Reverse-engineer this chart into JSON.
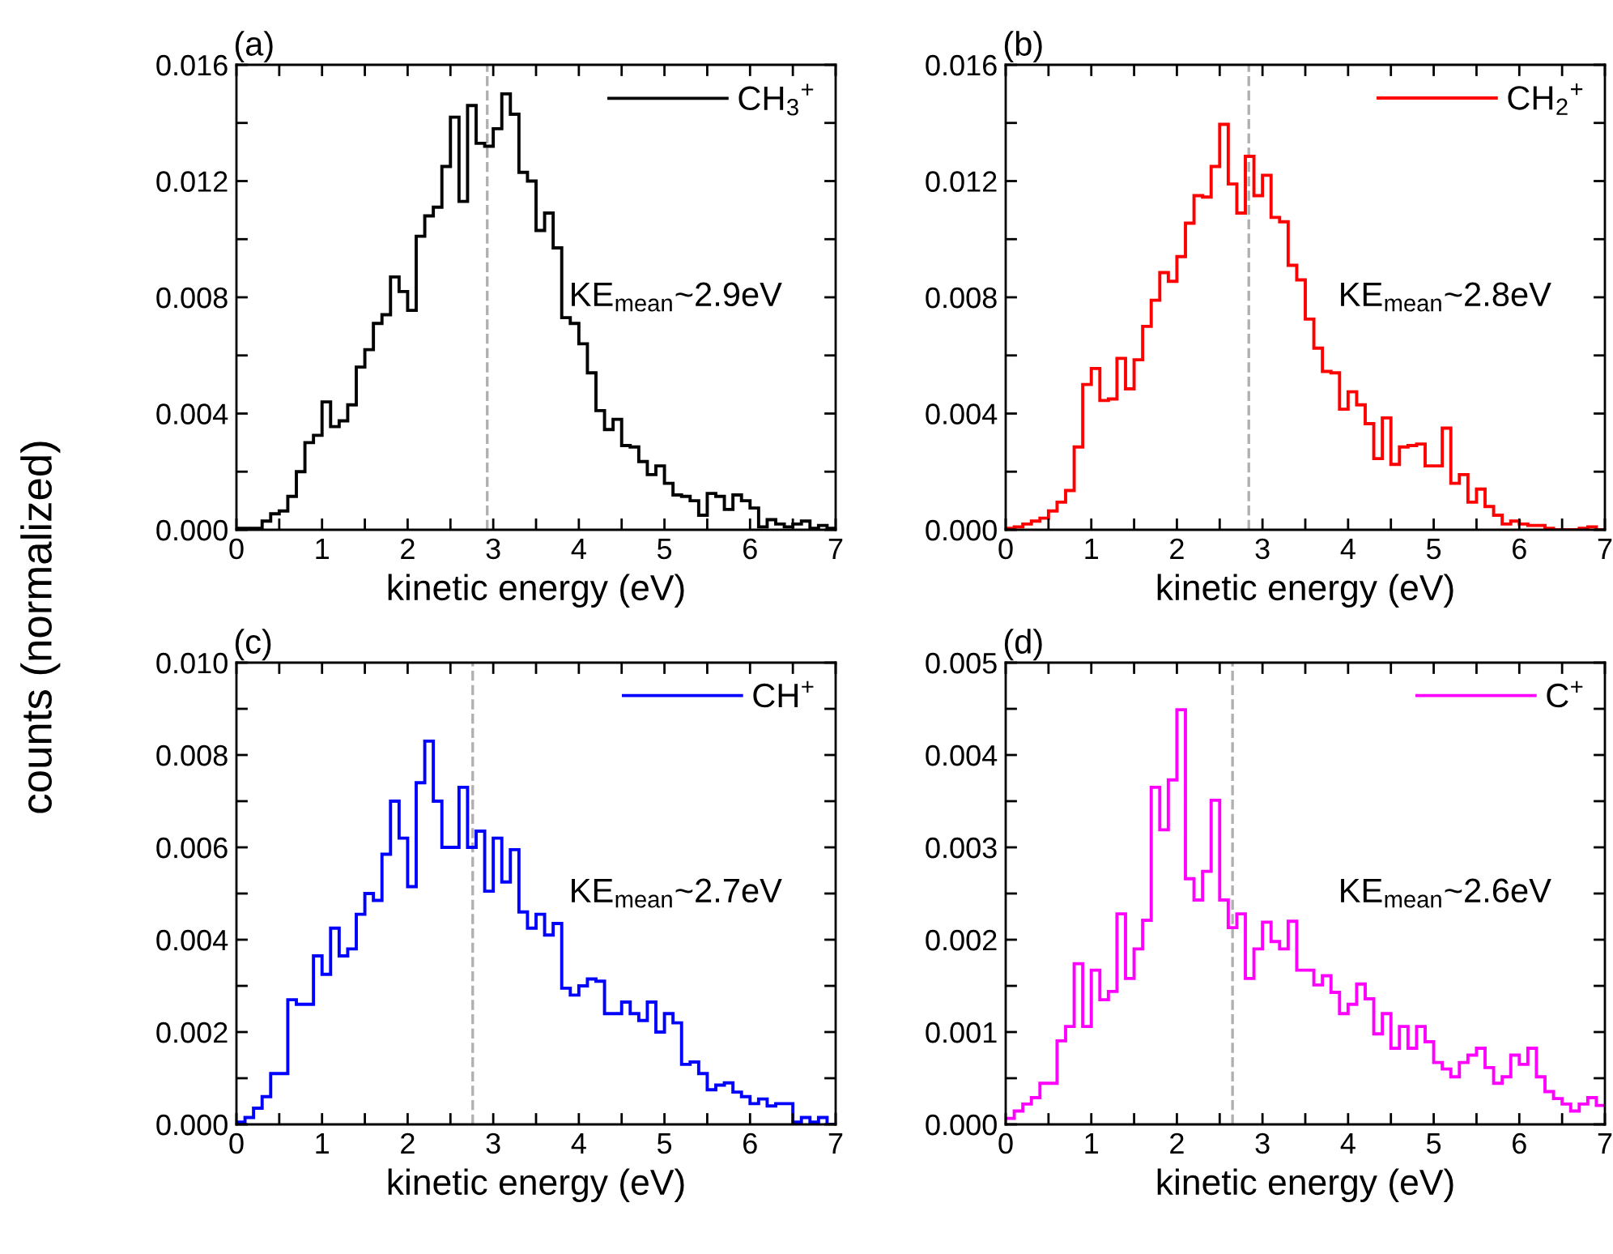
{
  "chart_data": [
    {
      "type": "histogram",
      "title": "(a)",
      "xlabel": "kinetic energy (eV)",
      "ylabel": "counts (normalized)",
      "bins": [
        0,
        0.1,
        0.2,
        0.3,
        0.4,
        0.5,
        0.6,
        0.7,
        0.8,
        0.9,
        1.0,
        1.1,
        1.2,
        1.3,
        1.4,
        1.5,
        1.6,
        1.7,
        1.8,
        1.9,
        2.0,
        2.1,
        2.2,
        2.3,
        2.4,
        2.5,
        2.6,
        2.7,
        2.8,
        2.9,
        3.0,
        3.1,
        3.2,
        3.3,
        3.4,
        3.5,
        3.6,
        3.7,
        3.8,
        3.9,
        4.0,
        4.1,
        4.2,
        4.3,
        4.4,
        4.5,
        4.6,
        4.7,
        4.8,
        4.9,
        5.0,
        5.1,
        5.2,
        5.3,
        5.4,
        5.5,
        5.6,
        5.7,
        5.8,
        5.9,
        6.0,
        6.1,
        6.2,
        6.3,
        6.4,
        6.5,
        6.6,
        6.7,
        6.8,
        6.9,
        7.0
      ],
      "series": [
        {
          "name": "CH$_{3}$$^{+}$",
          "color": "#000000",
          "values": [
            5e-05,
            5e-05,
            5e-05,
            0.0003,
            0.00055,
            0.00065,
            0.00115,
            0.002,
            0.003,
            0.00325,
            0.0044,
            0.00355,
            0.00375,
            0.0043,
            0.0056,
            0.0062,
            0.0071,
            0.0074,
            0.0087,
            0.0082,
            0.00755,
            0.0101,
            0.0108,
            0.0111,
            0.0125,
            0.0142,
            0.0113,
            0.0146,
            0.0133,
            0.0132,
            0.0138,
            0.015,
            0.0143,
            0.0123,
            0.012,
            0.0103,
            0.0109,
            0.0097,
            0.0073,
            0.0071,
            0.0064,
            0.0054,
            0.0041,
            0.00345,
            0.0038,
            0.0029,
            0.00285,
            0.00235,
            0.0019,
            0.0022,
            0.0016,
            0.0012,
            0.00115,
            0.001,
            0.0005,
            0.00125,
            0.00115,
            0.0007,
            0.0012,
            0.001,
            0.00075,
            0.0001,
            0.00035,
            0.0002,
            0.0001,
            0.0002,
            0.0003,
            5e-05,
            0.00015,
            5e-05
          ]
        }
      ],
      "xlim": [
        0,
        7
      ],
      "xticks": [
        0,
        {
          "value": 0.5,
          "label": null
        },
        1,
        {
          "value": 1.5,
          "label": null
        },
        2,
        {
          "value": 2.5,
          "label": null
        },
        3,
        {
          "value": 3.5,
          "label": null
        },
        4,
        {
          "value": 4.5,
          "label": null
        },
        5,
        {
          "value": 5.5,
          "label": null
        },
        6,
        {
          "value": 6.5,
          "label": null
        },
        7
      ],
      "ylim": [
        0,
        0.016
      ],
      "yticks": [
        "0.000",
        {
          "value": 0.002,
          "label": null
        },
        {
          "value": 0.004,
          "label": "0.004"
        },
        {
          "value": 0.006,
          "label": null
        },
        {
          "value": 0.008,
          "label": "0.008"
        },
        {
          "value": 0.01,
          "label": null
        },
        {
          "value": 0.012,
          "label": "0.012"
        },
        {
          "value": 0.014,
          "label": null
        },
        {
          "value": 0.016,
          "label": "0.016"
        }
      ],
      "ref_lines": [
        {
          "axis": "x",
          "value": 2.93,
          "color": "#b0b0b0",
          "line_style": "dashed"
        }
      ],
      "annotations": [
        "KE$_{mean}$~2.9eV"
      ],
      "legend": "top right",
      "grid": false
    },
    {
      "type": "histogram",
      "title": "(b)",
      "xlabel": "kinetic energy (eV)",
      "bins": [
        0,
        0.1,
        0.2,
        0.3,
        0.4,
        0.5,
        0.6,
        0.7,
        0.8,
        0.9,
        1.0,
        1.1,
        1.2,
        1.3,
        1.4,
        1.5,
        1.6,
        1.7,
        1.8,
        1.9,
        2.0,
        2.1,
        2.2,
        2.3,
        2.4,
        2.5,
        2.6,
        2.7,
        2.8,
        2.9,
        3.0,
        3.1,
        3.2,
        3.3,
        3.4,
        3.5,
        3.6,
        3.7,
        3.8,
        3.9,
        4.0,
        4.1,
        4.2,
        4.3,
        4.4,
        4.5,
        4.6,
        4.7,
        4.8,
        4.9,
        5.0,
        5.1,
        5.2,
        5.3,
        5.4,
        5.5,
        5.6,
        5.7,
        5.8,
        5.9,
        6.0,
        6.1,
        6.2,
        6.3,
        6.4,
        6.5,
        6.6,
        6.7,
        6.8,
        6.9,
        7.0
      ],
      "series": [
        {
          "name": "CH$_{2}$$^{+}$",
          "color": "#ff0000",
          "values": [
            5e-05,
            0.0001,
            0.0002,
            0.0003,
            0.0004,
            0.00065,
            0.00095,
            0.00135,
            0.00285,
            0.005,
            0.00555,
            0.00445,
            0.0045,
            0.0059,
            0.00485,
            0.00585,
            0.007,
            0.0079,
            0.00885,
            0.00855,
            0.0094,
            0.01055,
            0.0115,
            0.01145,
            0.0125,
            0.01395,
            0.0119,
            0.0109,
            0.01285,
            0.0115,
            0.0122,
            0.01075,
            0.0106,
            0.0091,
            0.0086,
            0.00725,
            0.00625,
            0.00545,
            0.0054,
            0.00415,
            0.00475,
            0.0043,
            0.00365,
            0.00245,
            0.00385,
            0.00225,
            0.00285,
            0.0029,
            0.00295,
            0.0022,
            0.0022,
            0.0035,
            0.0016,
            0.0019,
            0.00095,
            0.0014,
            0.0008,
            0.0005,
            0.0002,
            0.0003,
            0.0002,
            0.00015,
            0.00015,
            5e-05,
            0,
            0,
            0,
            5e-05,
            0.0001,
            0
          ]
        }
      ],
      "xlim": [
        0,
        7
      ],
      "xticks": [
        0,
        {
          "value": 0.5,
          "label": null
        },
        1,
        {
          "value": 1.5,
          "label": null
        },
        2,
        {
          "value": 2.5,
          "label": null
        },
        3,
        {
          "value": 3.5,
          "label": null
        },
        4,
        {
          "value": 4.5,
          "label": null
        },
        5,
        {
          "value": 5.5,
          "label": null
        },
        6,
        {
          "value": 6.5,
          "label": null
        },
        7
      ],
      "ylim": [
        0,
        0.016
      ],
      "yticks": [
        {
          "value": 0,
          "label": "0.000"
        },
        {
          "value": 0.002,
          "label": null
        },
        {
          "value": 0.004,
          "label": "0.004"
        },
        {
          "value": 0.006,
          "label": null
        },
        {
          "value": 0.008,
          "label": "0.008"
        },
        {
          "value": 0.01,
          "label": null
        },
        {
          "value": 0.012,
          "label": "0.012"
        },
        {
          "value": 0.014,
          "label": null
        },
        {
          "value": 0.016,
          "label": "0.016"
        }
      ],
      "ref_lines": [
        {
          "axis": "x",
          "value": 2.84,
          "color": "#b0b0b0",
          "line_style": "dashed"
        }
      ],
      "annotations": [
        "KE$_{mean}$~2.8eV"
      ],
      "legend": "top right",
      "grid": false
    },
    {
      "type": "histogram",
      "title": "(c)",
      "xlabel": "kinetic energy (eV)",
      "bins": [
        0,
        0.1,
        0.2,
        0.3,
        0.4,
        0.5,
        0.6,
        0.7,
        0.8,
        0.9,
        1.0,
        1.1,
        1.2,
        1.3,
        1.4,
        1.5,
        1.6,
        1.7,
        1.8,
        1.9,
        2.0,
        2.1,
        2.2,
        2.3,
        2.4,
        2.5,
        2.6,
        2.7,
        2.8,
        2.9,
        3.0,
        3.1,
        3.2,
        3.3,
        3.4,
        3.5,
        3.6,
        3.7,
        3.8,
        3.9,
        4.0,
        4.1,
        4.2,
        4.3,
        4.4,
        4.5,
        4.6,
        4.7,
        4.8,
        4.9,
        5.0,
        5.1,
        5.2,
        5.3,
        5.4,
        5.5,
        5.6,
        5.7,
        5.8,
        5.9,
        6.0,
        6.1,
        6.2,
        6.3,
        6.4,
        6.5,
        6.6,
        6.7,
        6.8,
        6.9,
        7.0
      ],
      "series": [
        {
          "name": "CH$^{+}$",
          "color": "#0000ff",
          "values": [
            5e-05,
            0.00015,
            0.00035,
            0.0006,
            0.0011,
            0.0011,
            0.0027,
            0.0026,
            0.0026,
            0.00365,
            0.00325,
            0.00425,
            0.00365,
            0.0038,
            0.00455,
            0.005,
            0.00485,
            0.00585,
            0.007,
            0.0062,
            0.00515,
            0.0074,
            0.0083,
            0.007,
            0.006,
            0.006,
            0.0073,
            0.006,
            0.00635,
            0.00505,
            0.0062,
            0.00525,
            0.00595,
            0.0046,
            0.00425,
            0.00455,
            0.0041,
            0.00435,
            0.00295,
            0.0028,
            0.003,
            0.00315,
            0.0031,
            0.0024,
            0.0024,
            0.00265,
            0.0024,
            0.00225,
            0.00265,
            0.002,
            0.0024,
            0.0022,
            0.0013,
            0.00135,
            0.0011,
            0.00075,
            0.00085,
            0.0009,
            0.0007,
            0.0006,
            0.00045,
            0.00055,
            0.0004,
            0.00045,
            0.00045,
            5e-05,
            0.00015,
            5e-05,
            0.00015,
            0
          ]
        }
      ],
      "xlim": [
        0,
        7
      ],
      "xticks": [
        0,
        {
          "value": 0.5,
          "label": null
        },
        1,
        {
          "value": 1.5,
          "label": null
        },
        2,
        {
          "value": 2.5,
          "label": null
        },
        3,
        {
          "value": 3.5,
          "label": null
        },
        4,
        {
          "value": 4.5,
          "label": null
        },
        5,
        {
          "value": 5.5,
          "label": null
        },
        6,
        {
          "value": 6.5,
          "label": null
        },
        7
      ],
      "ylim": [
        0,
        0.01
      ],
      "yticks": [
        {
          "value": 0,
          "label": "0.000"
        },
        {
          "value": 0.001,
          "label": null
        },
        {
          "value": 0.002,
          "label": "0.002"
        },
        {
          "value": 0.003,
          "label": null
        },
        {
          "value": 0.004,
          "label": "0.004"
        },
        {
          "value": 0.005,
          "label": null
        },
        {
          "value": 0.006,
          "label": "0.006"
        },
        {
          "value": 0.007,
          "label": null
        },
        {
          "value": 0.008,
          "label": "0.008"
        },
        {
          "value": 0.009,
          "label": null
        },
        {
          "value": 0.01,
          "label": "0.010"
        }
      ],
      "ref_lines": [
        {
          "axis": "x",
          "value": 2.76,
          "color": "#b0b0b0",
          "line_style": "dashed"
        }
      ],
      "annotations": [
        "KE$_{mean}$~2.7eV"
      ],
      "legend": "top right",
      "grid": false
    },
    {
      "type": "histogram",
      "title": "(d)",
      "xlabel": "kinetic energy (eV)",
      "bins": [
        0,
        0.1,
        0.2,
        0.3,
        0.4,
        0.5,
        0.6,
        0.7,
        0.8,
        0.9,
        1.0,
        1.1,
        1.2,
        1.3,
        1.4,
        1.5,
        1.6,
        1.7,
        1.8,
        1.9,
        2.0,
        2.1,
        2.2,
        2.3,
        2.4,
        2.5,
        2.6,
        2.7,
        2.8,
        2.9,
        3.0,
        3.1,
        3.2,
        3.3,
        3.4,
        3.5,
        3.6,
        3.7,
        3.8,
        3.9,
        4.0,
        4.1,
        4.2,
        4.3,
        4.4,
        4.5,
        4.6,
        4.7,
        4.8,
        4.9,
        5.0,
        5.1,
        5.2,
        5.3,
        5.4,
        5.5,
        5.6,
        5.7,
        5.8,
        5.9,
        6.0,
        6.1,
        6.2,
        6.3,
        6.4,
        6.5,
        6.6,
        6.7,
        6.8,
        6.9,
        7.0
      ],
      "series": [
        {
          "name": "C$^{+}$",
          "color": "#ff00ff",
          "values": [
            6.5e-05,
            0.000145,
            0.00022,
            0.00029,
            0.000445,
            0.000445,
            0.000905,
            0.00106,
            0.00174,
            0.00106,
            0.00167,
            0.00135,
            0.00144,
            0.00228,
            0.00158,
            0.0019,
            0.00221,
            0.00365,
            0.00319,
            0.00373,
            0.00449,
            0.00266,
            0.00243,
            0.00274,
            0.00351,
            0.00243,
            0.00213,
            0.00228,
            0.00158,
            0.0019,
            0.00219,
            0.00198,
            0.0019,
            0.0022,
            0.00167,
            0.00167,
            0.00151,
            0.00161,
            0.00143,
            0.0012,
            0.0013,
            0.00152,
            0.00136,
            0.00098,
            0.0012,
            0.000825,
            0.00106,
            0.000825,
            0.00106,
            0.000895,
            0.00067,
            0.0006,
            0.000515,
            0.00067,
            0.00075,
            0.000825,
            0.000615,
            0.000445,
            0.000515,
            0.00075,
            0.00065,
            0.000825,
            0.000515,
            0.000355,
            0.00028,
            0.00022,
            0.000145,
            0.00022,
            0.00029,
            0.000205
          ]
        }
      ],
      "xlim": [
        0,
        7
      ],
      "xticks": [
        0,
        {
          "value": 0.5,
          "label": null
        },
        1,
        {
          "value": 1.5,
          "label": null
        },
        2,
        {
          "value": 2.5,
          "label": null
        },
        3,
        {
          "value": 3.5,
          "label": null
        },
        4,
        {
          "value": 4.5,
          "label": null
        },
        5,
        {
          "value": 5.5,
          "label": null
        },
        6,
        {
          "value": 6.5,
          "label": null
        },
        7
      ],
      "ylim": [
        0,
        0.005
      ],
      "yticks": [
        {
          "value": 0,
          "label": "0.000"
        },
        {
          "value": 0.0005,
          "label": null
        },
        {
          "value": 0.001,
          "label": "0.001"
        },
        {
          "value": 0.0015,
          "label": null
        },
        {
          "value": 0.002,
          "label": "0.002"
        },
        {
          "value": 0.0025,
          "label": null
        },
        {
          "value": 0.003,
          "label": "0.003"
        },
        {
          "value": 0.0035,
          "label": null
        },
        {
          "value": 0.004,
          "label": "0.004"
        },
        {
          "value": 0.0045,
          "label": null
        },
        {
          "value": 0.005,
          "label": "0.005"
        }
      ],
      "ref_lines": [
        {
          "axis": "x",
          "value": 2.65,
          "color": "#b0b0b0",
          "line_style": "dashed"
        }
      ],
      "annotations": [
        "KE$_{mean}$~2.6eV"
      ],
      "legend": "top right",
      "grid": false
    }
  ]
}
